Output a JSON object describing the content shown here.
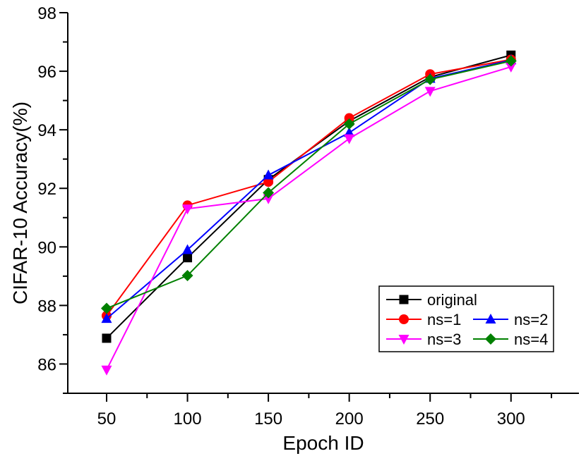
{
  "chart_data": {
    "type": "line",
    "xlabel": "Epoch ID",
    "ylabel": "CIFAR-10 Accuracy(%)",
    "x": [
      50,
      100,
      150,
      200,
      250,
      300
    ],
    "xticks": [
      50,
      100,
      150,
      200,
      250,
      300
    ],
    "xlim": [
      26,
      342
    ],
    "yticks": [
      86,
      88,
      90,
      92,
      94,
      96,
      98
    ],
    "ytick_labels": [
      "86",
      "88",
      "90",
      "92",
      "94",
      "96",
      "98"
    ],
    "ylim": [
      85,
      98
    ],
    "grid": false,
    "legend_position": "bottom-right",
    "series": [
      {
        "name": "original",
        "color": "#000000",
        "marker": "square",
        "values": [
          86.88,
          89.63,
          92.3,
          94.3,
          95.8,
          96.55
        ]
      },
      {
        "name": "ns=1",
        "color": "#ff0000",
        "marker": "circle",
        "values": [
          87.65,
          91.42,
          92.22,
          94.4,
          95.9,
          96.4
        ]
      },
      {
        "name": "ns=2",
        "color": "#0000ff",
        "marker": "triangle-up",
        "values": [
          87.55,
          89.9,
          92.45,
          93.9,
          95.75,
          96.38
        ]
      },
      {
        "name": "ns=3",
        "color": "#ff00ff",
        "marker": "triangle-down",
        "values": [
          85.8,
          91.3,
          91.65,
          93.7,
          95.32,
          96.15
        ]
      },
      {
        "name": "ns=4",
        "color": "#008000",
        "marker": "diamond",
        "values": [
          87.9,
          89.02,
          91.85,
          94.2,
          95.72,
          96.35
        ]
      }
    ]
  }
}
